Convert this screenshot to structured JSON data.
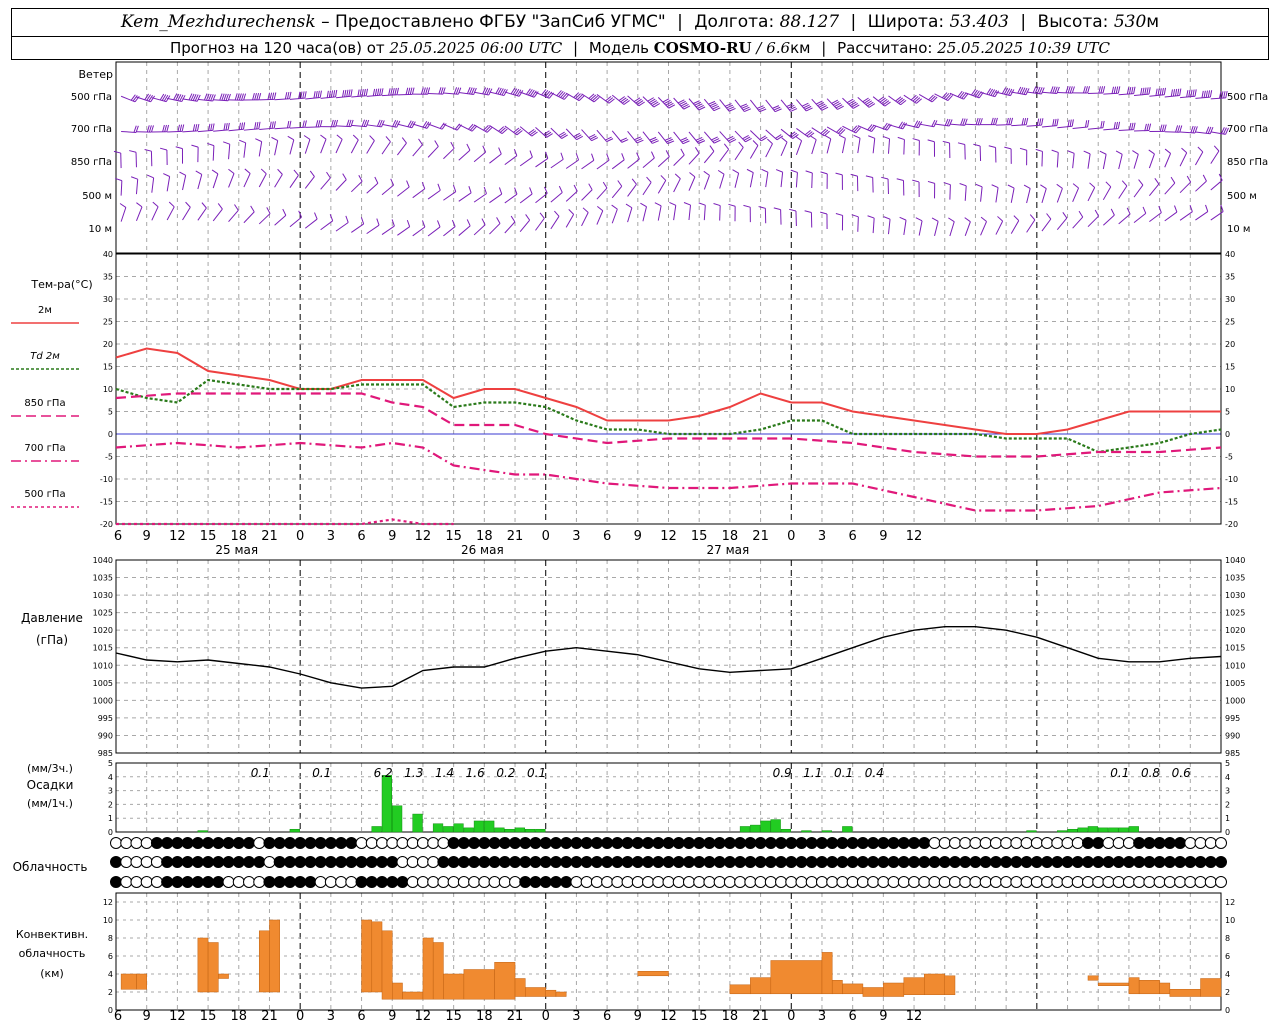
{
  "header": {
    "station": "Kem_Mezhdurechensk",
    "provider": "– Предоставлено ФГБУ \"ЗапСиб УГМС\"",
    "lon_label": "Долгота:",
    "lon": "88.127",
    "lat_label": "Широта:",
    "lat": "53.403",
    "alt_label": "Высота:",
    "alt": "530",
    "alt_unit": "м",
    "forecast_label": "Прогноз на 120 часа(ов)  от",
    "forecast_start": "25.05.2025 06:00 UTC",
    "model_label": "Модель",
    "model": "COSMO-RU",
    "model_res": "/ 6.6",
    "model_res_unit": "км",
    "calc_label": "Рассчитано:",
    "calc_time": "25.05.2025 10:39 UTC"
  },
  "time_axis": {
    "hours": [
      "6",
      "9",
      "12",
      "15",
      "18",
      "21",
      "0",
      "3",
      "6",
      "9",
      "12",
      "15",
      "18",
      "21",
      "0",
      "3",
      "6",
      "9",
      "12",
      "15",
      "18",
      "21",
      "0",
      "3",
      "6",
      "9",
      "12"
    ],
    "days": [
      "25 мая",
      "26 мая",
      "27 мая"
    ]
  },
  "wind": {
    "title": "Ветер",
    "levels": [
      "500 гПа",
      "700 гПа",
      "850 гПа",
      "500  м",
      "10   м"
    ]
  },
  "temperature": {
    "title": "Тем-ра(°C)",
    "legend": [
      {
        "label": "2м",
        "color": "#ee4040",
        "dash": ""
      },
      {
        "label": "Td  2м",
        "color": "#2a7a1a",
        "dash": "3,2"
      },
      {
        "label": "850 гПа",
        "color": "#e0187a",
        "dash": "10,5"
      },
      {
        "label": "700 гПа",
        "color": "#e0187a",
        "dash": "10,4,2,4"
      },
      {
        "label": "500 гПа",
        "color": "#e0187a",
        "dash": "3,3"
      }
    ],
    "yticks": [
      "40",
      "35",
      "30",
      "25",
      "20",
      "15",
      "10",
      "5",
      "0",
      "-5",
      "-10",
      "-15",
      "-20"
    ]
  },
  "pressure": {
    "title": "Давление",
    "unit": "(гПа)",
    "yticks": [
      "1040",
      "1035",
      "1030",
      "1025",
      "1020",
      "1015",
      "1010",
      "1005",
      "1000",
      "995",
      "990",
      "985"
    ]
  },
  "precip": {
    "unit3h": "(мм/3ч.)",
    "title": "Осадки",
    "unit1h": "(мм/1ч.)",
    "yticks": [
      "5",
      "4",
      "3",
      "2",
      "1",
      "0"
    ],
    "totals": [
      {
        "hour": 14.5,
        "value": "0.1"
      },
      {
        "hour": 20.5,
        "value": "0.1"
      },
      {
        "hour": 26.5,
        "value": "6.2"
      },
      {
        "hour": 29.5,
        "value": "1.3"
      },
      {
        "hour": 32.5,
        "value": "1.4"
      },
      {
        "hour": 35.5,
        "value": "1.6"
      },
      {
        "hour": 38.5,
        "value": "0.2"
      },
      {
        "hour": 41.5,
        "value": "0.1"
      },
      {
        "hour": 65.5,
        "value": "0.9"
      },
      {
        "hour": 68.5,
        "value": "1.1"
      },
      {
        "hour": 71.5,
        "value": "0.1"
      },
      {
        "hour": 74.5,
        "value": "0.4"
      },
      {
        "hour": 98.5,
        "value": "0.1"
      },
      {
        "hour": 101.5,
        "value": "0.8"
      },
      {
        "hour": 104.5,
        "value": "0.6"
      }
    ]
  },
  "cloud": {
    "title": "Облачность"
  },
  "conv": {
    "title1": "Конвективн.",
    "title2": "облачность",
    "unit": "(км)",
    "yticks": [
      "12",
      "10",
      "8",
      "6",
      "4",
      "2",
      "0"
    ]
  },
  "chart_data": [
    {
      "type": "line",
      "title": "Тем-ра(°C)",
      "x_unit": "hours since 25.05.2025 06:00 UTC",
      "ylim": [
        -20,
        40
      ],
      "series": [
        {
          "name": "2м",
          "x": [
            0,
            3,
            6,
            9,
            12,
            15,
            18,
            21,
            24,
            27,
            30,
            33,
            36,
            39,
            42,
            45,
            48,
            51,
            54,
            57,
            60,
            63,
            66,
            69,
            72,
            75,
            78,
            81,
            84,
            87,
            90,
            93,
            96,
            99,
            102,
            105,
            108
          ],
          "values": [
            17,
            19,
            18,
            14,
            13,
            12,
            10,
            10,
            12,
            12,
            12,
            8,
            10,
            10,
            8,
            6,
            3,
            3,
            3,
            4,
            6,
            9,
            7,
            7,
            5,
            4,
            3,
            2,
            1,
            0,
            0,
            1,
            3,
            5,
            5,
            5,
            5
          ]
        },
        {
          "name": "Td  2м",
          "x": [
            0,
            3,
            6,
            9,
            12,
            15,
            18,
            21,
            24,
            27,
            30,
            33,
            36,
            39,
            42,
            45,
            48,
            51,
            54,
            57,
            60,
            63,
            66,
            69,
            72,
            75,
            78,
            81,
            84,
            87,
            90,
            93,
            96,
            99,
            102,
            105,
            108
          ],
          "values": [
            10,
            8,
            7,
            12,
            11,
            10,
            10,
            10,
            11,
            11,
            11,
            6,
            7,
            7,
            6,
            3,
            1,
            1,
            0,
            0,
            0,
            1,
            3,
            3,
            0,
            0,
            0,
            0,
            0,
            -1,
            -1,
            -1,
            -4,
            -3,
            -2,
            0,
            1
          ]
        },
        {
          "name": "850 гПа",
          "x": [
            0,
            6,
            12,
            18,
            24,
            27,
            30,
            33,
            36,
            39,
            42,
            48,
            54,
            60,
            66,
            72,
            78,
            84,
            90,
            96,
            102,
            108
          ],
          "values": [
            8,
            9,
            9,
            9,
            9,
            7,
            6,
            2,
            2,
            2,
            0,
            -2,
            -1,
            -1,
            -1,
            -2,
            -4,
            -5,
            -5,
            -4,
            -4,
            -3
          ]
        },
        {
          "name": "700 гПа",
          "x": [
            0,
            6,
            12,
            18,
            24,
            27,
            30,
            33,
            36,
            39,
            42,
            48,
            54,
            60,
            66,
            72,
            78,
            84,
            90,
            96,
            102,
            108
          ],
          "values": [
            -3,
            -2,
            -3,
            -2,
            -3,
            -2,
            -3,
            -7,
            -8,
            -9,
            -9,
            -11,
            -12,
            -12,
            -11,
            -11,
            -14,
            -17,
            -17,
            -16,
            -13,
            -12
          ]
        },
        {
          "name": "500 гПа",
          "x": [
            0,
            3,
            6,
            9,
            12,
            15,
            18,
            24,
            27,
            30,
            33
          ],
          "values": [
            -20,
            -20,
            -20,
            -20,
            -20,
            -20,
            -20,
            -20,
            -19,
            -20,
            -20
          ]
        }
      ]
    },
    {
      "type": "line",
      "title": "Давление",
      "ylabel": "(гПа)",
      "ylim": [
        985,
        1040
      ],
      "series": [
        {
          "x": [
            0,
            3,
            6,
            9,
            12,
            15,
            18,
            21,
            24,
            27,
            30,
            33,
            36,
            39,
            42,
            45,
            48,
            51,
            54,
            57,
            60,
            63,
            66,
            69,
            72,
            75,
            78,
            81,
            84,
            87,
            90,
            93,
            96,
            99,
            102,
            105,
            108
          ],
          "values": [
            1013.5,
            1011.5,
            1011,
            1011.5,
            1010.5,
            1009.5,
            1007.5,
            1005,
            1003.5,
            1004,
            1008.5,
            1009.5,
            1009.5,
            1012,
            1014,
            1015,
            1014,
            1013,
            1011,
            1009,
            1008,
            1008.5,
            1009,
            1012,
            1015,
            1018,
            1020,
            1021,
            1021,
            1020,
            1018,
            1015,
            1012,
            1011,
            1011,
            1012,
            1012.5
          ]
        }
      ]
    },
    {
      "type": "bar",
      "title": "Осадки",
      "ylabel": "(мм/1ч.)",
      "ylim": [
        0,
        5
      ],
      "x": [
        8,
        17,
        25,
        26,
        27,
        29,
        31,
        32,
        33,
        34,
        35,
        36,
        37,
        38,
        39,
        40,
        41,
        61,
        62,
        63,
        64,
        65,
        67,
        69,
        71,
        89,
        92,
        93,
        94,
        95,
        96,
        97,
        98,
        99
      ],
      "values": [
        0.1,
        0.2,
        0.4,
        4.1,
        1.9,
        1.3,
        0.6,
        0.4,
        0.6,
        0.3,
        0.8,
        0.8,
        0.3,
        0.2,
        0.3,
        0.2,
        0.2,
        0.4,
        0.5,
        0.8,
        0.9,
        0.2,
        0.1,
        0.1,
        0.4,
        0.1,
        0.1,
        0.2,
        0.3,
        0.4,
        0.3,
        0.3,
        0.3,
        0.4
      ]
    },
    {
      "type": "bar",
      "title": "Конвективн. облачность",
      "ylabel": "(км)",
      "ylim": [
        0,
        13
      ],
      "segments": [
        {
          "x0": 0.5,
          "x1": 2,
          "bottom": 2.3,
          "top": 4
        },
        {
          "x0": 2,
          "x1": 3,
          "bottom": 2.3,
          "top": 4
        },
        {
          "x0": 8,
          "x1": 9,
          "bottom": 2,
          "top": 8
        },
        {
          "x0": 9,
          "x1": 10,
          "bottom": 2,
          "top": 7.5
        },
        {
          "x0": 10,
          "x1": 11,
          "bottom": 3.5,
          "top": 4
        },
        {
          "x0": 11,
          "x1": 14,
          "bottom": 3.5,
          "top": 3.3
        },
        {
          "x0": 14,
          "x1": 15,
          "bottom": 2,
          "top": 8.8
        },
        {
          "x0": 15,
          "x1": 16,
          "bottom": 2,
          "top": 10
        },
        {
          "x0": 24,
          "x1": 25,
          "bottom": 2,
          "top": 10
        },
        {
          "x0": 25,
          "x1": 26,
          "bottom": 2,
          "top": 9.8
        },
        {
          "x0": 26,
          "x1": 27,
          "bottom": 1.2,
          "top": 8.8
        },
        {
          "x0": 27,
          "x1": 28,
          "bottom": 1.2,
          "top": 3
        },
        {
          "x0": 28,
          "x1": 30,
          "bottom": 1.2,
          "top": 2
        },
        {
          "x0": 30,
          "x1": 31,
          "bottom": 1.2,
          "top": 8
        },
        {
          "x0": 31,
          "x1": 32,
          "bottom": 1.2,
          "top": 7.5
        },
        {
          "x0": 32,
          "x1": 34,
          "bottom": 1.2,
          "top": 4
        },
        {
          "x0": 34,
          "x1": 37,
          "bottom": 1.2,
          "top": 4.5
        },
        {
          "x0": 37,
          "x1": 39,
          "bottom": 1.2,
          "top": 5.3
        },
        {
          "x0": 39,
          "x1": 40,
          "bottom": 1.5,
          "top": 3.5
        },
        {
          "x0": 40,
          "x1": 42,
          "bottom": 1.5,
          "top": 2.5
        },
        {
          "x0": 42,
          "x1": 43,
          "bottom": 1.5,
          "top": 2.2
        },
        {
          "x0": 43,
          "x1": 44,
          "bottom": 1.5,
          "top": 2
        },
        {
          "x0": 51,
          "x1": 54,
          "bottom": 3.8,
          "top": 4.3
        },
        {
          "x0": 60,
          "x1": 62,
          "bottom": 1.8,
          "top": 2.8
        },
        {
          "x0": 62,
          "x1": 64,
          "bottom": 1.8,
          "top": 3.6
        },
        {
          "x0": 64,
          "x1": 69,
          "bottom": 1.8,
          "top": 5.5
        },
        {
          "x0": 69,
          "x1": 70,
          "bottom": 1.8,
          "top": 6.4
        },
        {
          "x0": 70,
          "x1": 71,
          "bottom": 1.8,
          "top": 3.3
        },
        {
          "x0": 71,
          "x1": 73,
          "bottom": 1.8,
          "top": 2.9
        },
        {
          "x0": 73,
          "x1": 75,
          "bottom": 1.5,
          "top": 2.5
        },
        {
          "x0": 75,
          "x1": 77,
          "bottom": 1.5,
          "top": 3
        },
        {
          "x0": 77,
          "x1": 79,
          "bottom": 1.7,
          "top": 3.6
        },
        {
          "x0": 79,
          "x1": 81,
          "bottom": 1.7,
          "top": 4
        },
        {
          "x0": 81,
          "x1": 82,
          "bottom": 1.7,
          "top": 3.8
        },
        {
          "x0": 95,
          "x1": 96,
          "bottom": 3.3,
          "top": 3.8
        },
        {
          "x0": 96,
          "x1": 99,
          "bottom": 2.7,
          "top": 3
        },
        {
          "x0": 99,
          "x1": 100,
          "bottom": 1.8,
          "top": 3.6
        },
        {
          "x0": 100,
          "x1": 102,
          "bottom": 1.8,
          "top": 3.3
        },
        {
          "x0": 102,
          "x1": 103,
          "bottom": 1.8,
          "top": 3
        },
        {
          "x0": 103,
          "x1": 106,
          "bottom": 1.5,
          "top": 2.3
        },
        {
          "x0": 106,
          "x1": 108,
          "bottom": 1.5,
          "top": 3.5
        }
      ]
    }
  ]
}
